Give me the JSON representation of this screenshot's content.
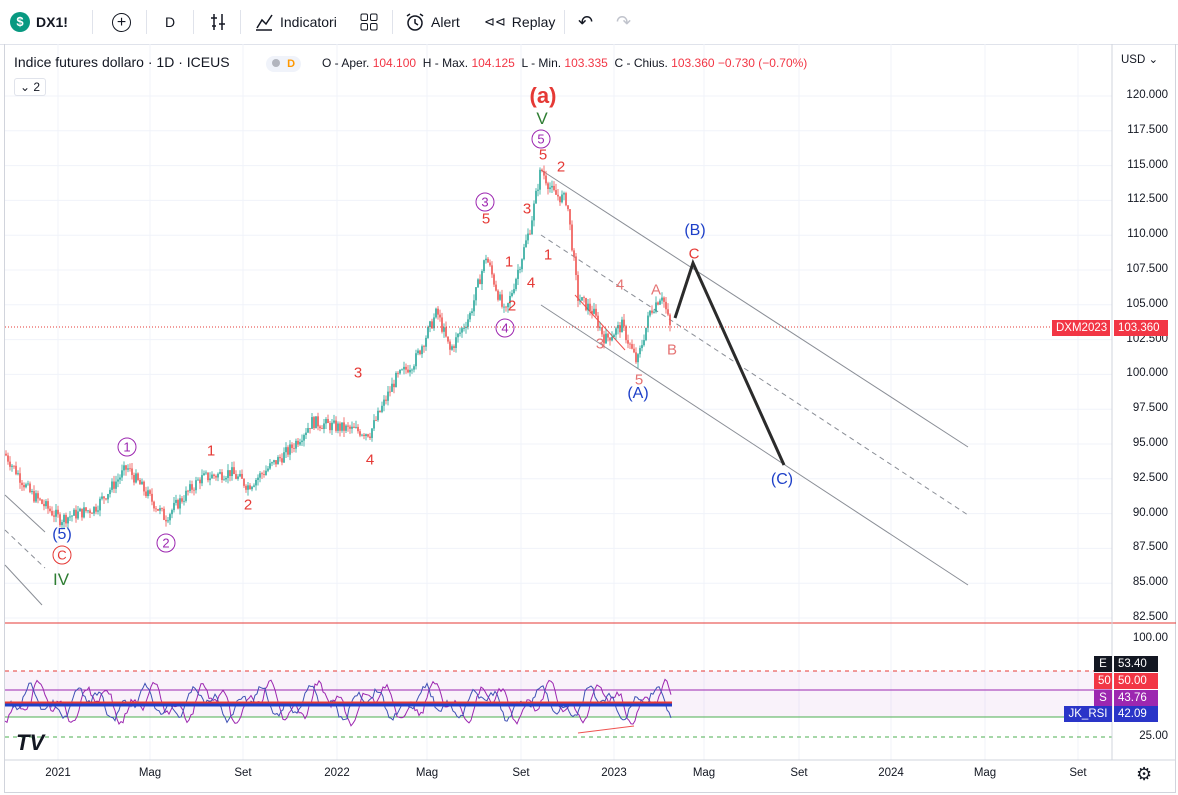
{
  "toolbar": {
    "symbol": "DX1!",
    "add_symbol_icon": "plus-circle-icon",
    "interval": "D",
    "indicators_label": "Indicatori",
    "alert_label": "Alert",
    "replay_label": "Replay"
  },
  "legend": {
    "title": "Indice futures dollaro · 1D · ICEUS",
    "badge": "D",
    "open_label": "O - Aper.",
    "open": "104.100",
    "high_label": "H - Max.",
    "high": "104.125",
    "low_label": "L - Min.",
    "low": "103.335",
    "close_label": "C - Chius.",
    "close": "103.360",
    "change": "−0.730 (−0.70%)",
    "collapse_count": "2"
  },
  "currency": "USD",
  "price_axis": [
    "120.000",
    "117.500",
    "115.000",
    "112.500",
    "110.000",
    "107.500",
    "105.000",
    "102.500",
    "100.000",
    "97.500",
    "95.000",
    "92.500",
    "90.000",
    "87.500",
    "85.000",
    "82.500"
  ],
  "current_price": {
    "name": "DXM2023",
    "value": "103.360"
  },
  "indicator_axis": [
    "100.00",
    "25.00"
  ],
  "indicator_tags": [
    {
      "key": "E",
      "value": "53.40",
      "color": "#131722"
    },
    {
      "key": "50",
      "value": "50.00",
      "color": "#f23645"
    },
    {
      "key": "S",
      "value": "43.76",
      "color": "#9c27b0"
    },
    {
      "key": "JK_RSI",
      "value": "42.09",
      "color": "#2a35c8"
    }
  ],
  "time_axis": [
    "2021",
    "Mag",
    "Set",
    "2022",
    "Mag",
    "Set",
    "2023",
    "Mag",
    "Set",
    "2024",
    "Mag",
    "Set"
  ],
  "wave_labels": {
    "top_a": "(a)",
    "top_v": "V",
    "top_c5": "5",
    "top_5": "5",
    "top_2": "2",
    "c3": "3",
    "c3_5": "5",
    "r3": "3",
    "r1a": "1",
    "r1b": "1",
    "r2": "2",
    "r4a": "4",
    "c4": "4",
    "c1": "1",
    "c2": "2",
    "n1": "1",
    "n2": "2",
    "n3": "3",
    "n4": "4",
    "b5": "(5)",
    "cC": "C",
    "iv": "IV",
    "d4": "4",
    "d3": "3",
    "d5": "5",
    "bA": "(A)",
    "lA": "A",
    "lB": "B",
    "bB": "(B)",
    "rC": "C",
    "bC": "(C)"
  },
  "colors": {
    "red": "#e53935",
    "blue": "#1e40c8",
    "purple": "#9c27b0",
    "green": "#2e7d32",
    "up": "#26a69a",
    "down": "#ef5350"
  }
}
